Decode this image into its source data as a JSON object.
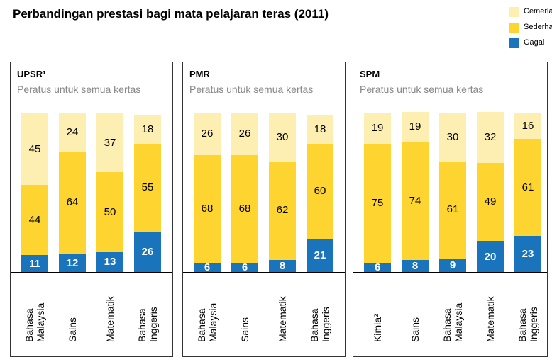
{
  "title": "Perbandingan prestasi bagi mata pelajaran teras (2011)",
  "chart_data": [
    {
      "type": "bar",
      "stacked": true,
      "title": "UPSR¹",
      "subtitle": "Peratus untuk semua kertas",
      "categories": [
        "Bahasa Malaysia",
        "Sains",
        "Matematik",
        "Bahasa Inggeris"
      ],
      "ylim": [
        0,
        100
      ],
      "series": [
        {
          "name": "Gagal",
          "color": "#1a74bc",
          "values": [
            11,
            12,
            13,
            26
          ]
        },
        {
          "name": "Sederhana",
          "color": "#fdd430",
          "values": [
            44,
            64,
            50,
            55
          ]
        },
        {
          "name": "Cemerlang",
          "color": "#fdefb2",
          "values": [
            45,
            24,
            37,
            18
          ]
        }
      ]
    },
    {
      "type": "bar",
      "stacked": true,
      "title": "PMR",
      "subtitle": "Peratus untuk semua kertas",
      "categories": [
        "Bahasa Malaysia",
        "Sains",
        "Matematik",
        "Bahasa Inggeris"
      ],
      "ylim": [
        0,
        100
      ],
      "series": [
        {
          "name": "Gagal",
          "color": "#1a74bc",
          "values": [
            6,
            6,
            8,
            21
          ]
        },
        {
          "name": "Sederhana",
          "color": "#fdd430",
          "values": [
            68,
            68,
            62,
            60
          ]
        },
        {
          "name": "Cemerlang",
          "color": "#fdefb2",
          "values": [
            26,
            26,
            30,
            18
          ]
        }
      ]
    },
    {
      "type": "bar",
      "stacked": true,
      "title": "SPM",
      "subtitle": "Peratus untuk semua kertas",
      "categories": [
        "Kimia²",
        "Sains",
        "Bahasa Malaysia",
        "Matematik",
        "Bahasa Inggeris"
      ],
      "ylim": [
        0,
        100
      ],
      "series": [
        {
          "name": "Gagal",
          "color": "#1a74bc",
          "values": [
            6,
            8,
            9,
            20,
            23
          ]
        },
        {
          "name": "Sederhana",
          "color": "#fdd430",
          "values": [
            75,
            74,
            61,
            49,
            61
          ]
        },
        {
          "name": "Cemerlang",
          "color": "#fdefb2",
          "values": [
            19,
            19,
            30,
            32,
            16
          ]
        }
      ]
    }
  ]
}
